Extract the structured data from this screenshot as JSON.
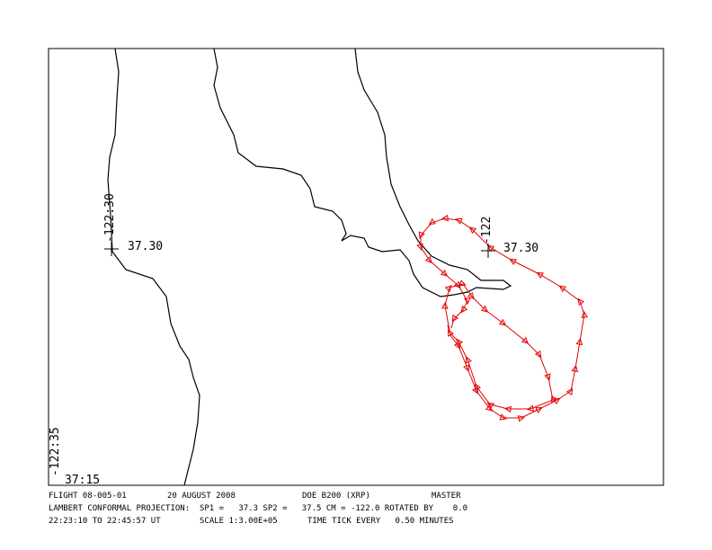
{
  "map": {
    "grid_labels": {
      "lon_left": "-122:30",
      "lat_left": "37.30",
      "lon_right": "-122",
      "lat_right": "37.30",
      "lon_corner": "-122:35",
      "lat_corner": "37:15"
    },
    "footer": {
      "flight": "FLIGHT 08-005-01",
      "date": "20 AUGUST 2008",
      "aircraft": "DOE B200 (XRP)",
      "file": "MASTER",
      "projection": "LAMBERT CONFORMAL PROJECTION:  SP1 =   37.3 SP2 =   37.5 CM = -122.0 ROTATED BY    0.0",
      "time_range": "22:23:10 TO 22:45:57 UT",
      "scale": "SCALE 1:3.00E+05",
      "time_tick": "TIME TICK EVERY   0.50 MINUTES"
    }
  }
}
